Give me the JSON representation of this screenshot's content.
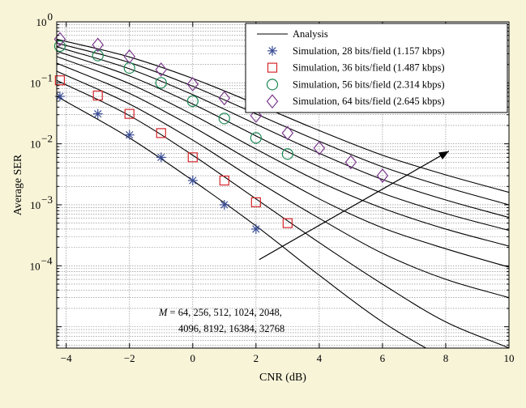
{
  "colors": {
    "background": "#f8f4d8",
    "plot_background": "#ffffff",
    "axis": "#000000",
    "grid": "#7f7f7f",
    "analysis_line": "#000000",
    "series_28": "#3a4d96",
    "series_36": "#d6262b",
    "series_56": "#1d8a55",
    "series_64": "#7b3a8c"
  },
  "chart_data": {
    "type": "line",
    "title": "",
    "xlabel": "CNR (dB)",
    "ylabel": "Average SER",
    "xlim": [
      -4.3,
      10
    ],
    "ylim_log10": [
      -5.35,
      0
    ],
    "y_scale": "log",
    "grid": true,
    "legend_position": "top-right",
    "x_ticks": [
      -4,
      -2,
      0,
      2,
      4,
      6,
      8,
      10
    ],
    "x_tick_labels": [
      "−4",
      "−2",
      "0",
      "2",
      "4",
      "6",
      "8",
      "10"
    ],
    "y_ticks": [
      {
        "value": 1,
        "base": "10",
        "exp": "0"
      },
      {
        "value": 0.1,
        "base": "10",
        "exp": "−1"
      },
      {
        "value": 0.01,
        "base": "10",
        "exp": "−2"
      },
      {
        "value": 0.001,
        "base": "10",
        "exp": "−3"
      },
      {
        "value": 0.0001,
        "base": "10",
        "exp": "−4"
      }
    ],
    "analysis": {
      "name": "Analysis",
      "x": [
        -4.3,
        -2,
        0,
        2,
        4,
        6,
        8,
        10
      ],
      "curves": [
        {
          "M": "64",
          "y": [
            0.06,
            0.0125,
            0.0025,
            0.00045,
            7e-05,
            1.2e-05,
            3e-06,
            1e-06
          ]
        },
        {
          "M": "256",
          "y": [
            0.11,
            0.029,
            0.0065,
            0.00125,
            0.00024,
            5e-05,
            1.2e-05,
            4.5e-06
          ]
        },
        {
          "M": "512",
          "y": [
            0.155,
            0.045,
            0.0115,
            0.0025,
            0.0006,
            0.00016,
            6e-05,
            3e-05
          ]
        },
        {
          "M": "1024",
          "y": [
            0.21,
            0.067,
            0.019,
            0.0047,
            0.00125,
            0.00042,
            0.00019,
            9.5e-05
          ]
        },
        {
          "M": "2048",
          "y": [
            0.27,
            0.097,
            0.03,
            0.0082,
            0.0024,
            0.00088,
            0.0004,
            0.00021
          ]
        },
        {
          "M": "4096",
          "y": [
            0.33,
            0.13,
            0.045,
            0.0135,
            0.0042,
            0.00155,
            0.00072,
            0.00038
          ]
        },
        {
          "M": "8192",
          "y": [
            0.39,
            0.17,
            0.064,
            0.021,
            0.007,
            0.0026,
            0.0012,
            0.00062
          ]
        },
        {
          "M": "16384",
          "y": [
            0.45,
            0.215,
            0.088,
            0.031,
            0.011,
            0.0042,
            0.00195,
            0.001
          ]
        },
        {
          "M": "32768",
          "y": [
            0.52,
            0.265,
            0.118,
            0.045,
            0.0165,
            0.0065,
            0.0031,
            0.0016
          ]
        }
      ]
    },
    "series": [
      {
        "name": "Simulation, 28 bits/field (1.157 kbps)",
        "marker": "asterisk",
        "color_key": "series_28",
        "x": [
          -4.2,
          -3,
          -2,
          -1,
          0,
          1,
          2
        ],
        "y": [
          0.06,
          0.031,
          0.014,
          0.006,
          0.0025,
          0.001,
          0.0004
        ]
      },
      {
        "name": "Simulation, 36 bits/field (1.487 kbps)",
        "marker": "square",
        "color_key": "series_36",
        "x": [
          -4.2,
          -3,
          -2,
          -1,
          0,
          1,
          2,
          3
        ],
        "y": [
          0.11,
          0.062,
          0.031,
          0.015,
          0.006,
          0.0025,
          0.0011,
          0.0005
        ]
      },
      {
        "name": "Simulation, 56 bits/field (2.314 kbps)",
        "marker": "circle",
        "color_key": "series_56",
        "x": [
          -4.2,
          -3,
          -2,
          -1,
          0,
          1,
          2,
          3
        ],
        "y": [
          0.4,
          0.28,
          0.175,
          0.1,
          0.05,
          0.026,
          0.0125,
          0.0068
        ]
      },
      {
        "name": "Simulation, 64 bits/field (2.645 kbps)",
        "marker": "diamond",
        "color_key": "series_64",
        "x": [
          -4.2,
          -3,
          -2,
          -1,
          0,
          1,
          2,
          3,
          4,
          5,
          6
        ],
        "y": [
          0.52,
          0.42,
          0.27,
          0.165,
          0.095,
          0.056,
          0.029,
          0.015,
          0.0085,
          0.005,
          0.003
        ]
      }
    ],
    "annotation": {
      "M_symbol": "M",
      "line1": " = 64, 256, 512, 1024, 2048,",
      "line2": "4096, 8192, 16384, 32768",
      "arrow_from": [
        2.1,
        -3.9
      ],
      "arrow_to": [
        8.1,
        -2.12
      ]
    }
  }
}
